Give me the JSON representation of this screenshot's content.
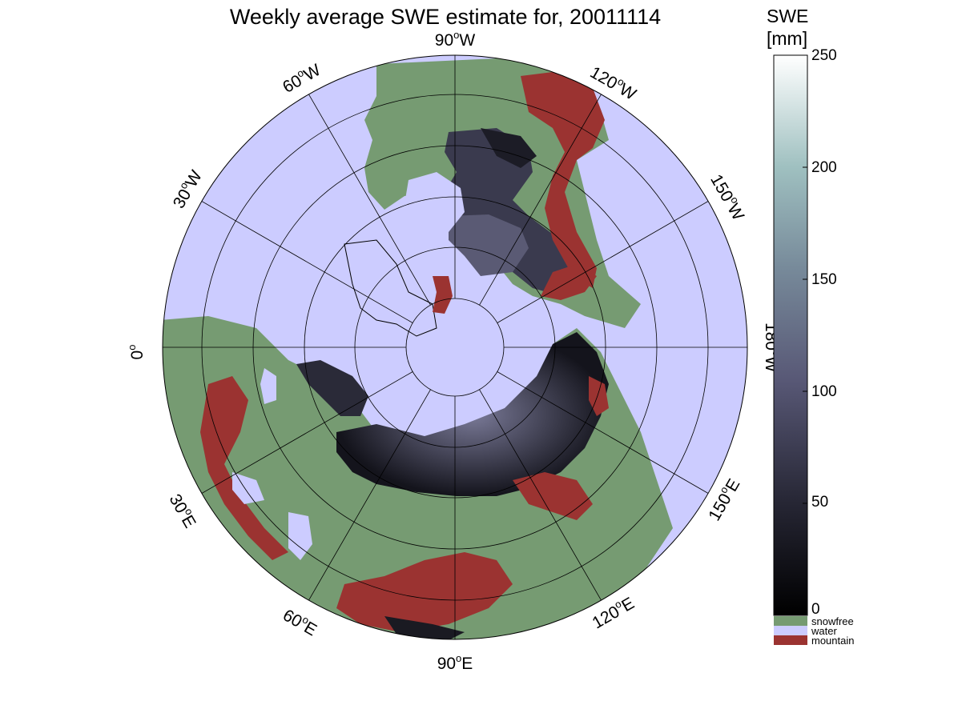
{
  "title": "Weekly average SWE estimate for, 20011114",
  "map": {
    "projection": "north polar stereographic",
    "longitude_labels": [
      {
        "id": "90w",
        "value": "90",
        "hemi": "W"
      },
      {
        "id": "120w",
        "value": "120",
        "hemi": "W"
      },
      {
        "id": "150w",
        "value": "150",
        "hemi": "W"
      },
      {
        "id": "180w",
        "value": "180",
        "hemi": "W"
      },
      {
        "id": "150e",
        "value": "150",
        "hemi": "E"
      },
      {
        "id": "120e",
        "value": "120",
        "hemi": "E"
      },
      {
        "id": "90e",
        "value": "90",
        "hemi": "E"
      },
      {
        "id": "60e",
        "value": "60",
        "hemi": "E"
      },
      {
        "id": "30e",
        "value": "30",
        "hemi": "E"
      },
      {
        "id": "0",
        "value": "0",
        "hemi": ""
      },
      {
        "id": "30w",
        "value": "30",
        "hemi": "W"
      },
      {
        "id": "60w",
        "value": "60",
        "hemi": "W"
      }
    ],
    "colors": {
      "water": "#ccccff",
      "snowfree": "#769b72",
      "mountain": "#9b3331",
      "snow_dark": "#0d0d14",
      "snow_mid": "#5a5a78"
    }
  },
  "colorbar": {
    "title_line1": "SWE",
    "title_line2": "[mm]",
    "min": 0,
    "max": 250,
    "ticks": [
      "250",
      "200",
      "150",
      "100",
      "50",
      "0"
    ],
    "legend": [
      {
        "label": "snowfree",
        "color": "#769b72"
      },
      {
        "label": "water",
        "color": "#ccccff"
      },
      {
        "label": "mountain",
        "color": "#9b3331"
      }
    ]
  }
}
